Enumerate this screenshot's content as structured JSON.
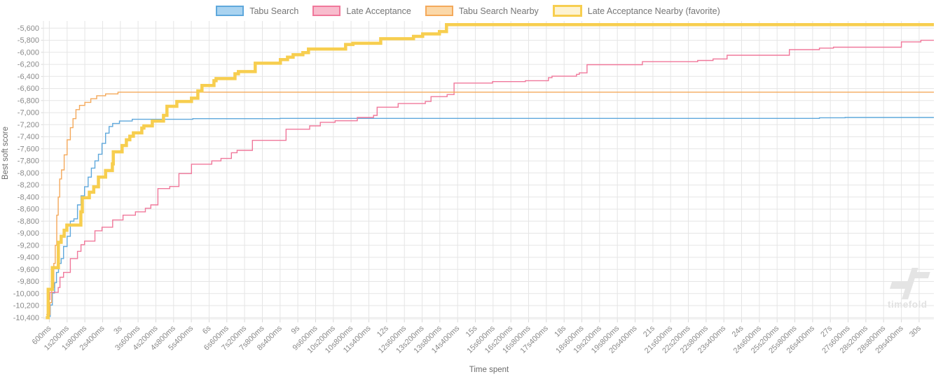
{
  "watermark": {
    "text": "timefold"
  },
  "chart_data": {
    "type": "line",
    "step": true,
    "title": "",
    "xlabel": "Time spent",
    "ylabel": "Best soft score",
    "legend_position": "top",
    "grid": true,
    "x_domain_ms": [
      400,
      30500
    ],
    "y_domain": [
      -5480,
      -10420
    ],
    "x_ticks": [
      {
        "t": 600,
        "label": "600ms"
      },
      {
        "t": 1200,
        "label": "1s200ms"
      },
      {
        "t": 1800,
        "label": "1s800ms"
      },
      {
        "t": 2400,
        "label": "2s400ms"
      },
      {
        "t": 3000,
        "label": "3s"
      },
      {
        "t": 3600,
        "label": "3s600ms"
      },
      {
        "t": 4200,
        "label": "4s200ms"
      },
      {
        "t": 4800,
        "label": "4s800ms"
      },
      {
        "t": 5400,
        "label": "5s400ms"
      },
      {
        "t": 6000,
        "label": "6s"
      },
      {
        "t": 6600,
        "label": "6s600ms"
      },
      {
        "t": 7200,
        "label": "7s200ms"
      },
      {
        "t": 7800,
        "label": "7s800ms"
      },
      {
        "t": 8400,
        "label": "8s400ms"
      },
      {
        "t": 9000,
        "label": "9s"
      },
      {
        "t": 9600,
        "label": "9s600ms"
      },
      {
        "t": 10200,
        "label": "10s200ms"
      },
      {
        "t": 10800,
        "label": "10s800ms"
      },
      {
        "t": 11400,
        "label": "11s400ms"
      },
      {
        "t": 12000,
        "label": "12s"
      },
      {
        "t": 12600,
        "label": "12s600ms"
      },
      {
        "t": 13200,
        "label": "13s200ms"
      },
      {
        "t": 13800,
        "label": "13s800ms"
      },
      {
        "t": 14400,
        "label": "14s400ms"
      },
      {
        "t": 15000,
        "label": "15s"
      },
      {
        "t": 15600,
        "label": "15s600ms"
      },
      {
        "t": 16200,
        "label": "16s200ms"
      },
      {
        "t": 16800,
        "label": "16s800ms"
      },
      {
        "t": 17400,
        "label": "17s400ms"
      },
      {
        "t": 18000,
        "label": "18s"
      },
      {
        "t": 18600,
        "label": "18s600ms"
      },
      {
        "t": 19200,
        "label": "19s200ms"
      },
      {
        "t": 19800,
        "label": "19s800ms"
      },
      {
        "t": 20400,
        "label": "20s400ms"
      },
      {
        "t": 21000,
        "label": "21s"
      },
      {
        "t": 21600,
        "label": "21s600ms"
      },
      {
        "t": 22200,
        "label": "22s200ms"
      },
      {
        "t": 22800,
        "label": "22s800ms"
      },
      {
        "t": 23400,
        "label": "23s400ms"
      },
      {
        "t": 24000,
        "label": "24s"
      },
      {
        "t": 24600,
        "label": "24s600ms"
      },
      {
        "t": 25200,
        "label": "25s200ms"
      },
      {
        "t": 25800,
        "label": "25s800ms"
      },
      {
        "t": 26400,
        "label": "26s400ms"
      },
      {
        "t": 27000,
        "label": "27s"
      },
      {
        "t": 27600,
        "label": "27s600ms"
      },
      {
        "t": 28200,
        "label": "28s200ms"
      },
      {
        "t": 28800,
        "label": "28s800ms"
      },
      {
        "t": 29400,
        "label": "29s400ms"
      },
      {
        "t": 30000,
        "label": "30s"
      }
    ],
    "y_ticks": [
      {
        "v": -5600,
        "label": "-5,600"
      },
      {
        "v": -5800,
        "label": "-5,800"
      },
      {
        "v": -6000,
        "label": "-6,000"
      },
      {
        "v": -6200,
        "label": "-6,200"
      },
      {
        "v": -6400,
        "label": "-6,400"
      },
      {
        "v": -6600,
        "label": "-6,600"
      },
      {
        "v": -6800,
        "label": "-6,800"
      },
      {
        "v": -7000,
        "label": "-7,000"
      },
      {
        "v": -7200,
        "label": "-7,200"
      },
      {
        "v": -7400,
        "label": "-7,400"
      },
      {
        "v": -7600,
        "label": "-7,600"
      },
      {
        "v": -7800,
        "label": "-7,800"
      },
      {
        "v": -8000,
        "label": "-8,000"
      },
      {
        "v": -8200,
        "label": "-8,200"
      },
      {
        "v": -8400,
        "label": "-8,400"
      },
      {
        "v": -8600,
        "label": "-8,600"
      },
      {
        "v": -8800,
        "label": "-8,800"
      },
      {
        "v": -9000,
        "label": "-9,000"
      },
      {
        "v": -9200,
        "label": "-9,200"
      },
      {
        "v": -9400,
        "label": "-9,400"
      },
      {
        "v": -9600,
        "label": "-9,600"
      },
      {
        "v": -9800,
        "label": "-9,800"
      },
      {
        "v": -10000,
        "label": "-10,000"
      },
      {
        "v": -10200,
        "label": "-10,200"
      },
      {
        "v": -10400,
        "label": "-10,400"
      }
    ],
    "series": [
      {
        "name": "Tabu Search",
        "color": "#5fa8dc",
        "fill": "#a9d3f0",
        "width": 1.4,
        "points": [
          [
            600,
            -10380
          ],
          [
            630,
            -10190
          ],
          [
            700,
            -9990
          ],
          [
            780,
            -9820
          ],
          [
            840,
            -9650
          ],
          [
            910,
            -9500
          ],
          [
            1000,
            -9420
          ],
          [
            1080,
            -9220
          ],
          [
            1200,
            -9050
          ],
          [
            1310,
            -8800
          ],
          [
            1430,
            -8760
          ],
          [
            1550,
            -8530
          ],
          [
            1670,
            -8380
          ],
          [
            1790,
            -8230
          ],
          [
            1910,
            -8070
          ],
          [
            2020,
            -7920
          ],
          [
            2140,
            -7800
          ],
          [
            2260,
            -7690
          ],
          [
            2380,
            -7510
          ],
          [
            2500,
            -7340
          ],
          [
            2620,
            -7230
          ],
          [
            2740,
            -7180
          ],
          [
            2970,
            -7140
          ],
          [
            3400,
            -7110
          ],
          [
            5450,
            -7100
          ],
          [
            8400,
            -7095
          ],
          [
            26630,
            -7085
          ],
          [
            27500,
            -7080
          ]
        ]
      },
      {
        "name": "Late Acceptance",
        "color": "#f0789b",
        "fill": "#f8bccd",
        "width": 1.4,
        "points": [
          [
            500,
            -10350
          ],
          [
            560,
            -10100
          ],
          [
            620,
            -9980
          ],
          [
            900,
            -9900
          ],
          [
            960,
            -9730
          ],
          [
            1080,
            -9650
          ],
          [
            1310,
            -9420
          ],
          [
            1550,
            -9300
          ],
          [
            1670,
            -9190
          ],
          [
            1790,
            -9130
          ],
          [
            2140,
            -8960
          ],
          [
            2380,
            -8900
          ],
          [
            2740,
            -8780
          ],
          [
            3090,
            -8700
          ],
          [
            3510,
            -8645
          ],
          [
            3845,
            -8585
          ],
          [
            4030,
            -8530
          ],
          [
            4270,
            -8260
          ],
          [
            4670,
            -8225
          ],
          [
            4980,
            -8010
          ],
          [
            5405,
            -7855
          ],
          [
            6090,
            -7800
          ],
          [
            6400,
            -7760
          ],
          [
            6755,
            -7665
          ],
          [
            6945,
            -7625
          ],
          [
            7465,
            -7460
          ],
          [
            8600,
            -7275
          ],
          [
            9400,
            -7220
          ],
          [
            9760,
            -7160
          ],
          [
            10260,
            -7135
          ],
          [
            11010,
            -7080
          ],
          [
            11560,
            -7045
          ],
          [
            11680,
            -6910
          ],
          [
            12390,
            -6850
          ],
          [
            13310,
            -6815
          ],
          [
            13500,
            -6735
          ],
          [
            14045,
            -6700
          ],
          [
            14280,
            -6510
          ],
          [
            15580,
            -6485
          ],
          [
            16690,
            -6470
          ],
          [
            17470,
            -6420
          ],
          [
            17590,
            -6395
          ],
          [
            18420,
            -6365
          ],
          [
            18515,
            -6340
          ],
          [
            18775,
            -6205
          ],
          [
            20645,
            -6155
          ],
          [
            22515,
            -6135
          ],
          [
            23035,
            -6110
          ],
          [
            23510,
            -6048
          ],
          [
            25615,
            -5955
          ],
          [
            26630,
            -5930
          ],
          [
            27105,
            -5915
          ],
          [
            29400,
            -5827
          ],
          [
            30060,
            -5800
          ]
        ]
      },
      {
        "name": "Tabu Search Nearby",
        "color": "#f4a95b",
        "fill": "#fbd8a8",
        "width": 1.4,
        "points": [
          [
            500,
            -10350
          ],
          [
            620,
            -10150
          ],
          [
            680,
            -9900
          ],
          [
            750,
            -9500
          ],
          [
            800,
            -9200
          ],
          [
            850,
            -8700
          ],
          [
            900,
            -8400
          ],
          [
            950,
            -8100
          ],
          [
            1010,
            -7950
          ],
          [
            1100,
            -7700
          ],
          [
            1200,
            -7450
          ],
          [
            1310,
            -7250
          ],
          [
            1400,
            -7100
          ],
          [
            1500,
            -6950
          ],
          [
            1620,
            -6880
          ],
          [
            1800,
            -6830
          ],
          [
            2000,
            -6770
          ],
          [
            2200,
            -6720
          ],
          [
            2500,
            -6690
          ],
          [
            2920,
            -6660
          ]
        ]
      },
      {
        "name": "Late Acceptance Nearby (favorite)",
        "color": "#f7ce4f",
        "fill": "#fdf3d2",
        "width": 4.5,
        "points": [
          [
            480,
            -10400
          ],
          [
            560,
            -9930
          ],
          [
            700,
            -9570
          ],
          [
            905,
            -9150
          ],
          [
            1000,
            -9050
          ],
          [
            1100,
            -8950
          ],
          [
            1190,
            -8865
          ],
          [
            1665,
            -8645
          ],
          [
            1715,
            -8410
          ],
          [
            1950,
            -8320
          ],
          [
            2100,
            -8230
          ],
          [
            2260,
            -8070
          ],
          [
            2500,
            -7960
          ],
          [
            2730,
            -7850
          ],
          [
            2760,
            -7650
          ],
          [
            3060,
            -7545
          ],
          [
            3205,
            -7450
          ],
          [
            3320,
            -7390
          ],
          [
            3440,
            -7335
          ],
          [
            3725,
            -7255
          ],
          [
            3795,
            -7220
          ],
          [
            4080,
            -7140
          ],
          [
            4460,
            -7045
          ],
          [
            4575,
            -6895
          ],
          [
            4910,
            -6815
          ],
          [
            5405,
            -6760
          ],
          [
            5620,
            -6640
          ],
          [
            5760,
            -6550
          ],
          [
            6165,
            -6470
          ],
          [
            6235,
            -6435
          ],
          [
            6875,
            -6355
          ],
          [
            6990,
            -6320
          ],
          [
            7560,
            -6180
          ],
          [
            8410,
            -6120
          ],
          [
            8650,
            -6080
          ],
          [
            8840,
            -6040
          ],
          [
            9170,
            -6005
          ],
          [
            9360,
            -5945
          ],
          [
            10615,
            -5870
          ],
          [
            10860,
            -5850
          ],
          [
            11800,
            -5775
          ],
          [
            12910,
            -5735
          ],
          [
            13220,
            -5695
          ],
          [
            13785,
            -5655
          ],
          [
            14025,
            -5540
          ]
        ]
      }
    ]
  }
}
